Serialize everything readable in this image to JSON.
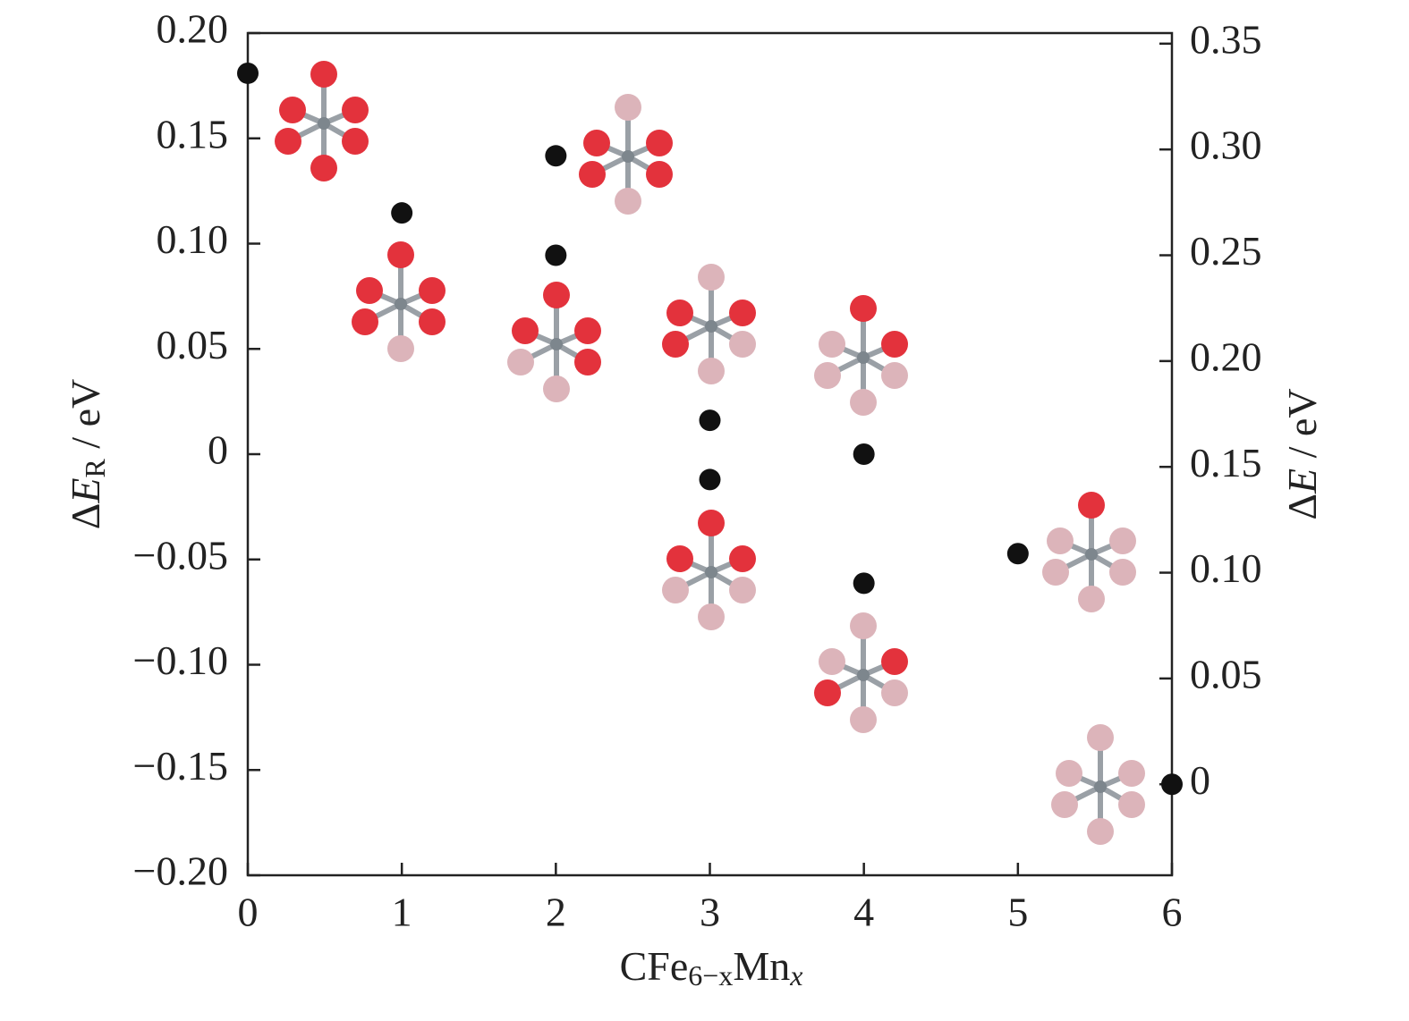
{
  "chart_data": {
    "type": "scatter",
    "xlabel": [
      "CFe",
      "6−x",
      "Mn",
      "x"
    ],
    "ylabel": [
      "Δ",
      "E",
      "R",
      " / eV"
    ],
    "y2label": [
      "Δ",
      "E",
      " / eV"
    ],
    "xlim": [
      0,
      6
    ],
    "xticks": [
      0,
      1,
      2,
      3,
      4,
      5,
      6
    ],
    "ylim": [
      -0.2,
      0.2
    ],
    "yticks": [
      {
        "value": -0.2,
        "label": "−0.20"
      },
      {
        "value": -0.15,
        "label": "−0.15"
      },
      {
        "value": -0.1,
        "label": "−0.10"
      },
      {
        "value": -0.05,
        "label": "−0.05"
      },
      0,
      0.05,
      {
        "value": 0.1,
        "label": "0.10"
      },
      0.15,
      {
        "value": 0.2,
        "label": "0.20"
      }
    ],
    "y2lim": [
      -0.043,
      0.355
    ],
    "y2ticks": [
      0,
      0.05,
      {
        "value": 0.1,
        "label": "0.10"
      },
      0.15,
      {
        "value": 0.2,
        "label": "0.20"
      },
      0.25,
      {
        "value": 0.3,
        "label": "0.30"
      },
      0.35
    ],
    "series": [
      {
        "color": "#111111",
        "axis": "y2",
        "x": [
          0,
          1,
          2,
          2,
          3,
          3,
          4,
          4,
          5,
          6
        ],
        "values": [
          0.336,
          0.27,
          0.297,
          0.25,
          0.172,
          0.144,
          0.156,
          0.095,
          0.109,
          0
        ]
      }
    ]
  }
}
